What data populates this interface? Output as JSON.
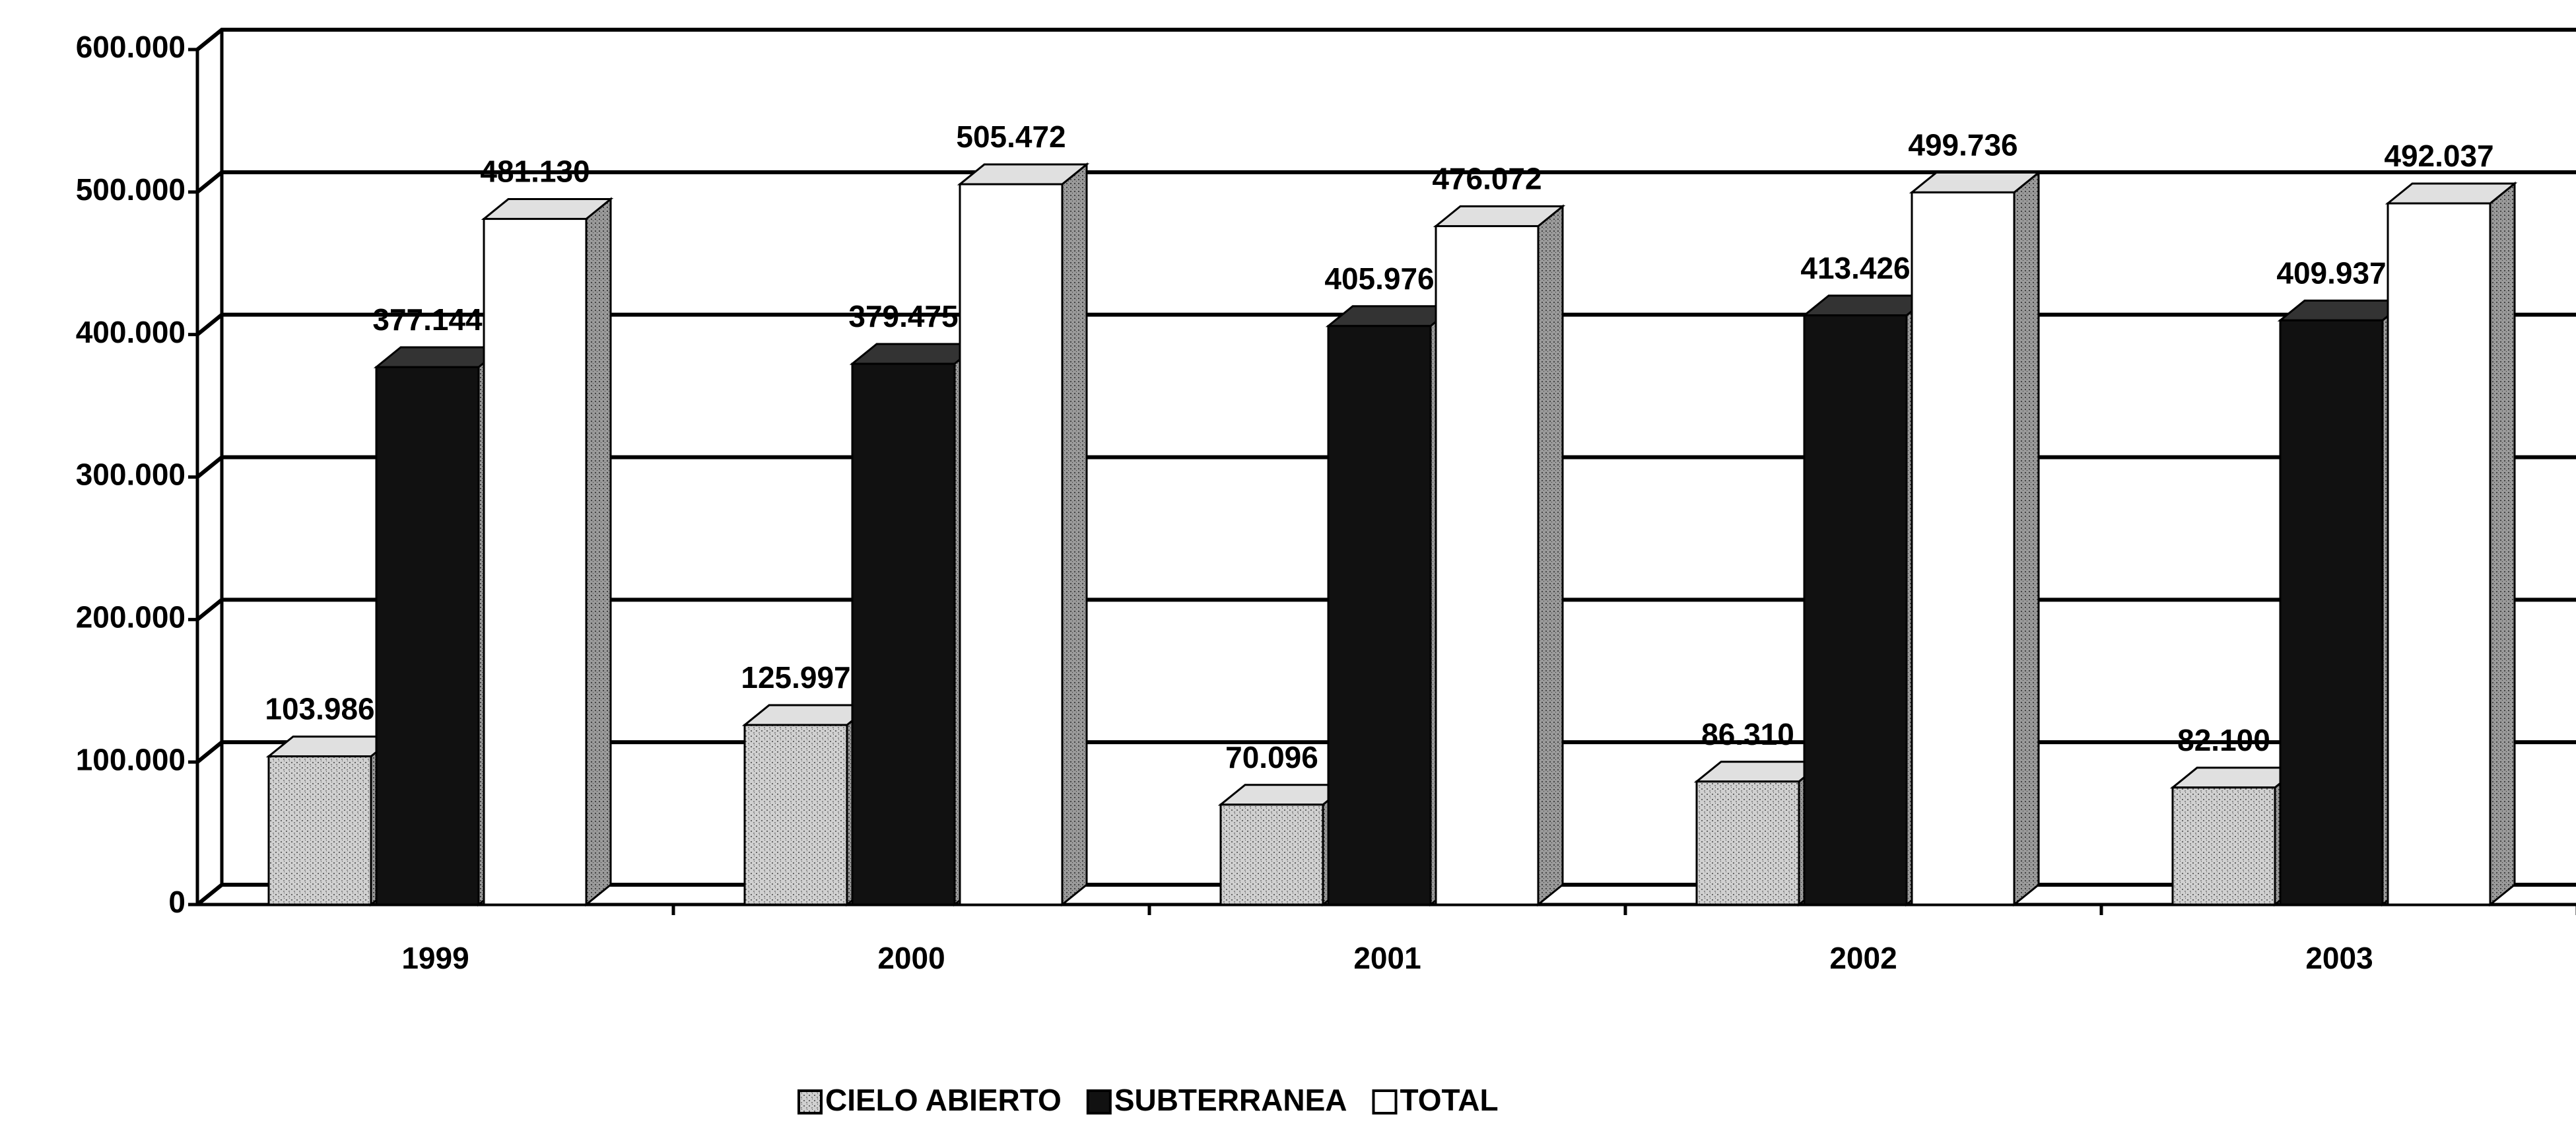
{
  "chart_data": {
    "type": "bar3d",
    "categories": [
      "1999",
      "2000",
      "2001",
      "2002",
      "2003"
    ],
    "series": [
      {
        "name": "CIELO ABIERTO",
        "color": "#b8b8b8",
        "values": [
          103986,
          125997,
          70096,
          86310,
          82100
        ],
        "value_labels": [
          "103.986",
          "125.997",
          "70.096",
          "86.310",
          "82.100"
        ]
      },
      {
        "name": "SUBTERRANEA",
        "color": "#111111",
        "values": [
          377144,
          379475,
          405976,
          413426,
          409937
        ],
        "value_labels": [
          "377.144",
          "379.475",
          "405.976",
          "413.426",
          "409.937"
        ]
      },
      {
        "name": "TOTAL",
        "color": "#ffffff",
        "values": [
          481130,
          505472,
          476072,
          499736,
          492037
        ],
        "value_labels": [
          "481.130",
          "505.472",
          "476.072",
          "499.736",
          "492.037"
        ]
      }
    ],
    "ylim": [
      0,
      600000
    ],
    "yticks": [
      0,
      {
        "value": 100000,
        "label": "100.000"
      },
      {
        "value": 200000,
        "label": "200.000"
      },
      {
        "value": 300000,
        "label": "300.000"
      },
      {
        "value": 400000,
        "label": "400.000"
      },
      {
        "value": 500000,
        "label": "500.000"
      },
      {
        "value": 600000,
        "label": "600.000"
      }
    ],
    "grid": true,
    "legend": "bottom"
  }
}
